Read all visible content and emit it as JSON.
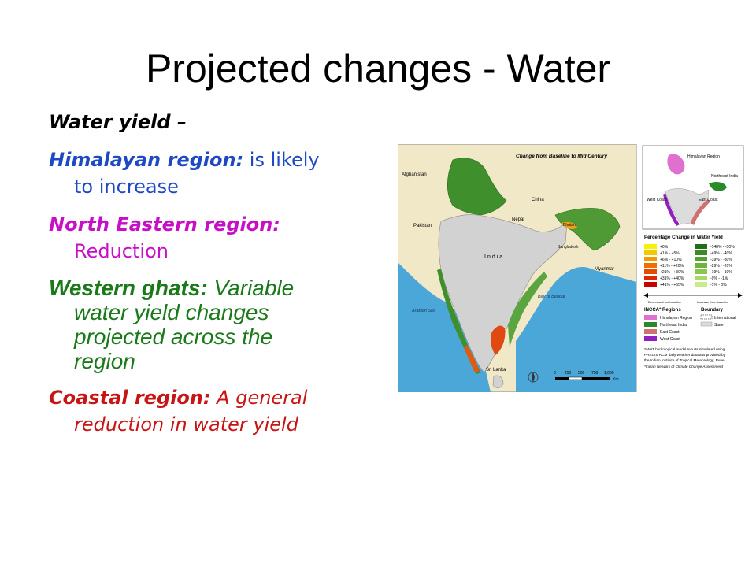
{
  "slide": {
    "title": "Projected changes - Water"
  },
  "bullets": {
    "water_yield": "Water yield –",
    "himalayan_head": "Himalayan region:",
    "himalayan_body": " is likely",
    "himalayan_cont": "to increase",
    "ne_head": "North Eastern region:",
    "ne_cont": "Reduction",
    "wg_head": "Western ghats:",
    "wg_body": " Variable",
    "wg_cont1": "water yield changes",
    "wg_cont2": "projected across the",
    "wg_cont3": "region",
    "coastal_head": "Coastal region:",
    "coastal_body": " A general",
    "coastal_cont": "reduction in water yield"
  },
  "map": {
    "title": "Change from Baseline to Mid Century",
    "countries": [
      "Afghanistan",
      "Pakistan",
      "China",
      "Nepal",
      "Bhutan",
      "Bangladesh",
      "Myanmar",
      "India",
      "Sri Lanka"
    ],
    "seas": [
      "Arabian Sea",
      "Bay of Bengal"
    ],
    "scale_labels": [
      "0",
      "250",
      "500",
      "750",
      "1,000"
    ],
    "scale_unit": "Km",
    "inset_labels": [
      "Himalayan Region",
      "Northeast India",
      "West Coast",
      "East Coast"
    ],
    "legend_title": "Percentage Change in Water Yield",
    "increase_classes": [
      "+0%",
      "+1% - +5%",
      "+6% - +10%",
      "+11% - +20%",
      "+21% - +30%",
      "+31% - +40%",
      "+41% - +55%"
    ],
    "increase_colors": [
      "#f7f200",
      "#f2c800",
      "#f29a00",
      "#ee7000",
      "#e84a00",
      "#e02800",
      "#c80000"
    ],
    "decrease_classes": [
      "-148% - -50%",
      "-49% - -40%",
      "-39% - -30%",
      "-29% - -20%",
      "-19% - -10%",
      "-9% - -1%",
      "-1% - 0%"
    ],
    "decrease_colors": [
      "#1f6e1a",
      "#3b8a26",
      "#55a032",
      "#70b440",
      "#8cc650",
      "#a8d868",
      "#c8ec8c"
    ],
    "arrow_left": "Decrease from baseline",
    "arrow_right": "Increase from baseline",
    "regions_title": "INCCA* Regions",
    "regions": [
      {
        "label": "Himalayan Region",
        "color": "#e070d0"
      },
      {
        "label": "Northeast India",
        "color": "#2a8a2a"
      },
      {
        "label": "East Coast",
        "color": "#d07070"
      },
      {
        "label": "West Coast",
        "color": "#9020c0"
      }
    ],
    "boundary_title": "Boundary",
    "boundaries": [
      "International",
      "State"
    ],
    "note1": "SWAT hydrological model results simulated using",
    "note2": "PRECIS RCM daily weather datasets provided by",
    "note3": "the Indian Institute of Tropical Meteorology, Pune",
    "note4": "*Indian Network of Climate Change Assessment"
  }
}
